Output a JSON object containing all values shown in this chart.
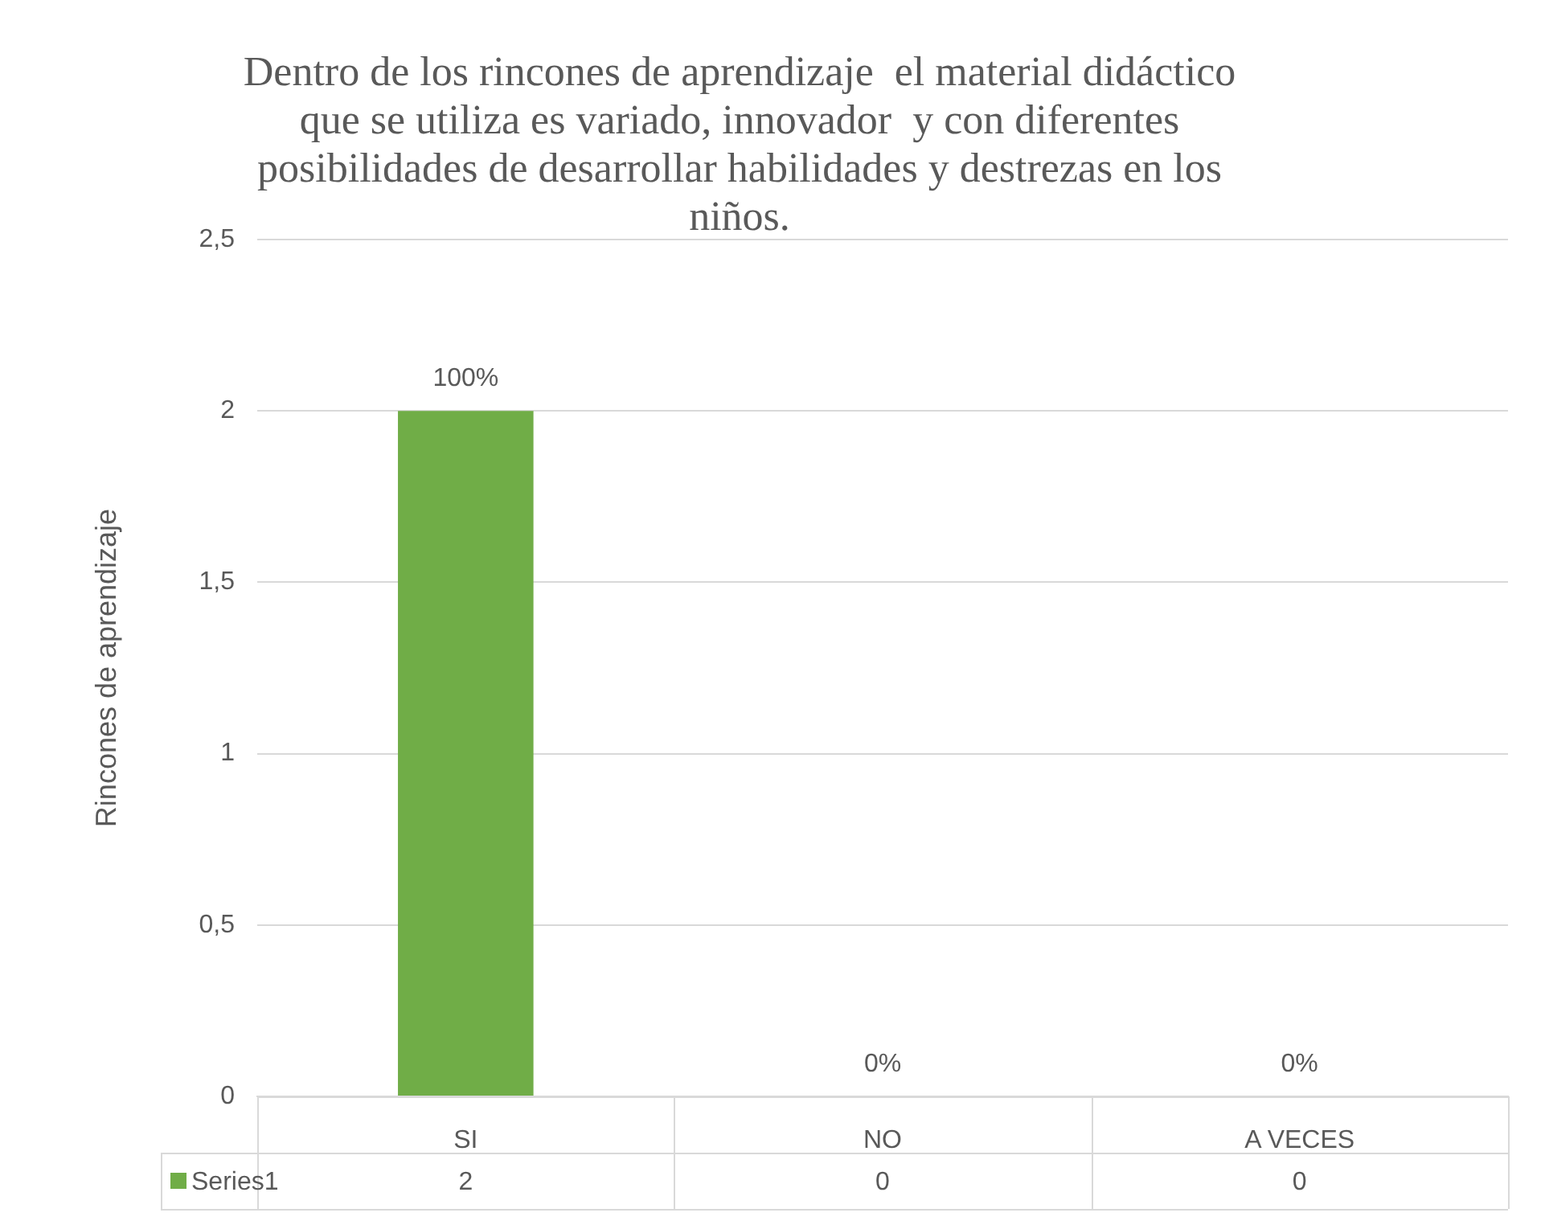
{
  "chart_data": {
    "type": "bar",
    "title": "Dentro de los rincones de aprendizaje  el material didáctico que se utiliza es variado, innovador  y con diferentes posibilidades de desarrollar habilidades y destrezas en los niños.",
    "ylabel": "Rincones de aprendizaje",
    "categories": [
      "SI",
      "NO",
      "A VECES"
    ],
    "series": [
      {
        "name": "Series1",
        "color": "#70ad47",
        "values": [
          2,
          0,
          0
        ]
      }
    ],
    "annotations": [
      {
        "text": "100%",
        "x": "SI",
        "y": 2
      },
      {
        "text": "0%",
        "x": "NO",
        "y": 0
      },
      {
        "text": "0%",
        "x": "A VECES",
        "y": 0
      }
    ],
    "ylim": [
      0,
      2.5
    ],
    "yticks": [
      0,
      {
        "value": 0.5,
        "label": "0,5"
      },
      1,
      {
        "value": 1.5,
        "label": "1,5"
      },
      2,
      {
        "value": 2.5,
        "label": "2,5"
      }
    ],
    "grid": "y",
    "data_labels": true
  }
}
